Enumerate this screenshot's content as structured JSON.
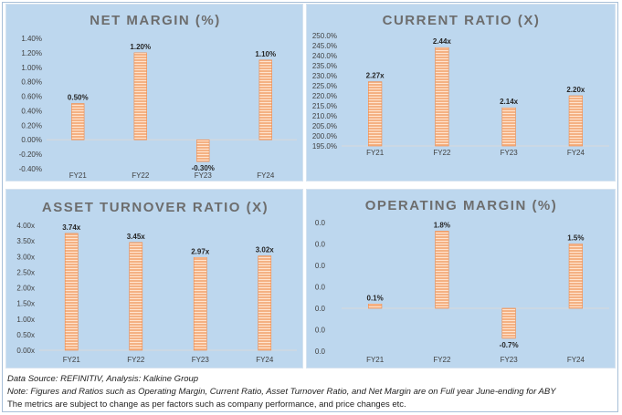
{
  "chart_data": [
    {
      "type": "bar",
      "title": "NET MARGIN (%)",
      "categories": [
        "FY21",
        "FY22",
        "FY23",
        "FY24"
      ],
      "values": [
        0.5,
        1.2,
        -0.3,
        1.1
      ],
      "data_labels": [
        "0.50%",
        "1.20%",
        "-0.30%",
        "1.10%"
      ],
      "yticks": [
        "1.40%",
        "1.20%",
        "1.00%",
        "0.80%",
        "0.60%",
        "0.40%",
        "0.20%",
        "0.00%",
        "-0.20%",
        "-0.40%"
      ],
      "ylim": [
        -0.4,
        1.4
      ],
      "grid": false,
      "bar_color": "#f4b183"
    },
    {
      "type": "bar",
      "title": "CURRENT RATIO (X)",
      "categories": [
        "FY21",
        "FY22",
        "FY23",
        "FY24"
      ],
      "values": [
        227,
        244,
        214,
        220
      ],
      "data_labels": [
        "2.27x",
        "2.44x",
        "2.14x",
        "2.20x"
      ],
      "yticks": [
        "250.0%",
        "245.0%",
        "240.0%",
        "235.0%",
        "230.0%",
        "225.0%",
        "220.0%",
        "215.0%",
        "210.0%",
        "205.0%",
        "200.0%",
        "195.0%"
      ],
      "ylim": [
        195,
        250
      ],
      "grid": false,
      "bar_color": "#f4b183"
    },
    {
      "type": "bar",
      "title": "ASSET TURNOVER RATIO (X)",
      "categories": [
        "FY21",
        "FY22",
        "FY23",
        "FY24"
      ],
      "values": [
        3.74,
        3.45,
        2.97,
        3.02
      ],
      "data_labels": [
        "3.74x",
        "3.45x",
        "2.97x",
        "3.02x"
      ],
      "yticks": [
        "4.00x",
        "3.50x",
        "3.00x",
        "2.50x",
        "2.00x",
        "1.50x",
        "1.00x",
        "0.50x",
        "0.00x"
      ],
      "ylim": [
        0,
        4
      ],
      "grid": false,
      "bar_color": "#f4b183"
    },
    {
      "type": "bar",
      "title": "OPERATING MARGIN (%)",
      "categories": [
        "FY21",
        "FY22",
        "FY23",
        "FY24"
      ],
      "values": [
        0.1,
        1.8,
        -0.7,
        1.5
      ],
      "data_labels": [
        "0.1%",
        "1.8%",
        "-0.7%",
        "1.5%"
      ],
      "yticks": [
        "0.0",
        "0.0",
        "0.0",
        "0.0",
        "0.0",
        "0.0",
        "0.0"
      ],
      "ylim": [
        -1.0,
        2.0
      ],
      "grid": false,
      "bar_color": "#f4b183"
    }
  ],
  "footer": {
    "source": "Data Source: REFINITIV, Analysis: Kalkine Group",
    "note": "Note: Figures and Ratios such as Operating Margin, Current Ratio, Asset Turnover Ratio, and Net Margin are on Full year June-ending for ABY",
    "disclaimer": "The metrics are subject to change as per factors such as company performance, and price changes etc."
  }
}
